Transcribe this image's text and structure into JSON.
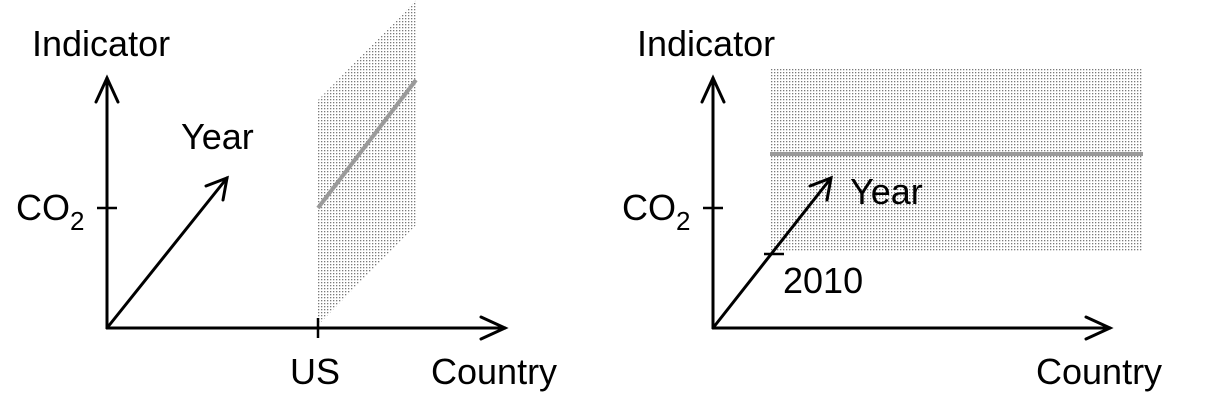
{
  "left_diagram": {
    "y_axis_label": "Indicator",
    "x_axis_label": "Country",
    "z_axis_label": "Year",
    "y_tick_label": "CO",
    "y_tick_subscript": "2",
    "x_tick_label": "US"
  },
  "right_diagram": {
    "y_axis_label": "Indicator",
    "x_axis_label": "Country",
    "z_axis_label": "Year",
    "y_tick_label": "CO",
    "y_tick_subscript": "2",
    "z_tick_label": "2010"
  },
  "colors": {
    "axis": "#000000",
    "highlight_line": "#9a9a9a",
    "plane_dots": "#7a7a7a"
  }
}
